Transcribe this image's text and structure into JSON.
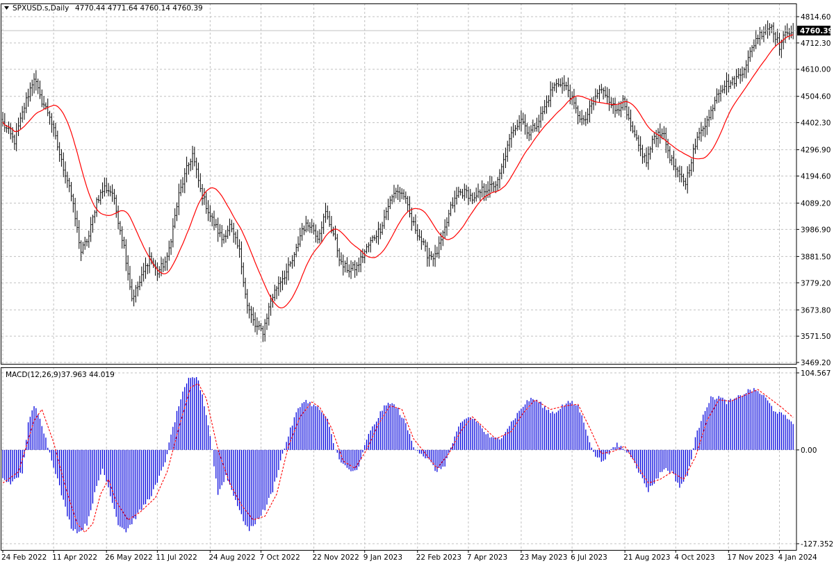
{
  "window": {
    "symbol_label": "SPXUSD.s,Daily",
    "ohlc_label": "4770.44 4771.64 4760.14 4760.39",
    "price_marker": "4760.39"
  },
  "colors": {
    "background": "#ffffff",
    "grid": "#c0c0c0",
    "candle": "#000000",
    "ma_line": "#ff0000",
    "histogram": "#0000dd",
    "signal_line": "#ff0000",
    "price_marker_bg": "#000000",
    "price_marker_text": "#ffffff"
  },
  "chart_data": [
    {
      "type": "bar",
      "title": "SPXUSD.s,Daily",
      "subtitle": "4770.44 4771.64 4760.14 4760.39",
      "y_tick_labels": [
        "4814.60",
        "4712.30",
        "4610.00",
        "4504.60",
        "4402.30",
        "4296.90",
        "4194.60",
        "4089.20",
        "3986.90",
        "3881.50",
        "3779.20",
        "3673.80",
        "3571.50",
        "3469.20"
      ],
      "ylim": [
        3455,
        4830
      ],
      "x_tick_labels": [
        "24 Feb 2022",
        "11 Apr 2022",
        "26 May 2022",
        "11 Jul 2022",
        "24 Aug 2022",
        "7 Oct 2022",
        "22 Nov 2022",
        "9 Jan 2023",
        "22 Feb 2023",
        "7 Apr 2023",
        "23 May 2023",
        "6 Jul 2023",
        "21 Aug 2023",
        "4 Oct 2023",
        "17 Nov 2023",
        "4 Jan 2024"
      ],
      "grid": true,
      "last_price": 4760.39,
      "price_keypoints": [
        [
          0,
          4400
        ],
        [
          6,
          4330
        ],
        [
          12,
          4490
        ],
        [
          16,
          4580
        ],
        [
          19,
          4500
        ],
        [
          24,
          4430
        ],
        [
          30,
          4250
        ],
        [
          34,
          4160
        ],
        [
          40,
          3900
        ],
        [
          44,
          3960
        ],
        [
          48,
          4100
        ],
        [
          52,
          4150
        ],
        [
          56,
          4130
        ],
        [
          62,
          3920
        ],
        [
          66,
          3720
        ],
        [
          70,
          3780
        ],
        [
          75,
          3880
        ],
        [
          79,
          3820
        ],
        [
          84,
          3870
        ],
        [
          90,
          4120
        ],
        [
          94,
          4220
        ],
        [
          97,
          4280
        ],
        [
          101,
          4140
        ],
        [
          106,
          4040
        ],
        [
          112,
          3950
        ],
        [
          116,
          4000
        ],
        [
          121,
          3900
        ],
        [
          125,
          3690
        ],
        [
          129,
          3610
        ],
        [
          133,
          3590
        ],
        [
          137,
          3710
        ],
        [
          141,
          3780
        ],
        [
          145,
          3820
        ],
        [
          149,
          3880
        ],
        [
          153,
          3990
        ],
        [
          157,
          4010
        ],
        [
          161,
          3960
        ],
        [
          165,
          4050
        ],
        [
          169,
          3970
        ],
        [
          173,
          3850
        ],
        [
          177,
          3830
        ],
        [
          181,
          3840
        ],
        [
          185,
          3900
        ],
        [
          189,
          3950
        ],
        [
          193,
          3990
        ],
        [
          197,
          4080
        ],
        [
          201,
          4140
        ],
        [
          205,
          4120
        ],
        [
          209,
          4020
        ],
        [
          213,
          3960
        ],
        [
          217,
          3890
        ],
        [
          221,
          3880
        ],
        [
          225,
          3960
        ],
        [
          229,
          4070
        ],
        [
          233,
          4130
        ],
        [
          237,
          4130
        ],
        [
          241,
          4100
        ],
        [
          245,
          4140
        ],
        [
          249,
          4150
        ],
        [
          253,
          4170
        ],
        [
          257,
          4280
        ],
        [
          261,
          4380
        ],
        [
          265,
          4420
        ],
        [
          269,
          4360
        ],
        [
          273,
          4400
        ],
        [
          277,
          4460
        ],
        [
          281,
          4540
        ],
        [
          285,
          4560
        ],
        [
          289,
          4530
        ],
        [
          293,
          4450
        ],
        [
          297,
          4400
        ],
        [
          301,
          4470
        ],
        [
          305,
          4530
        ],
        [
          309,
          4510
        ],
        [
          313,
          4450
        ],
        [
          317,
          4480
        ],
        [
          321,
          4380
        ],
        [
          325,
          4310
        ],
        [
          329,
          4250
        ],
        [
          333,
          4350
        ],
        [
          337,
          4370
        ],
        [
          341,
          4270
        ],
        [
          345,
          4200
        ],
        [
          349,
          4170
        ],
        [
          353,
          4290
        ],
        [
          357,
          4380
        ],
        [
          361,
          4420
        ],
        [
          365,
          4520
        ],
        [
          369,
          4550
        ],
        [
          373,
          4560
        ],
        [
          377,
          4590
        ],
        [
          381,
          4650
        ],
        [
          385,
          4730
        ],
        [
          389,
          4760
        ],
        [
          393,
          4780
        ],
        [
          397,
          4700
        ],
        [
          401,
          4760
        ],
        [
          404,
          4760.39
        ]
      ],
      "moving_average": {
        "color": "#ff0000"
      }
    },
    {
      "type": "bar",
      "title": "MACD(12,26,9)",
      "subtitle": "37.963 44.019",
      "y_tick_labels": [
        "104.567",
        "0.00",
        "-127.352"
      ],
      "ylim": [
        -127.352,
        104.567
      ],
      "histogram_values_keypoints": [
        [
          0,
          -40
        ],
        [
          5,
          -45
        ],
        [
          10,
          -30
        ],
        [
          13,
          35
        ],
        [
          16,
          60
        ],
        [
          19,
          45
        ],
        [
          23,
          5
        ],
        [
          27,
          -30
        ],
        [
          31,
          -70
        ],
        [
          35,
          -105
        ],
        [
          39,
          -112
        ],
        [
          43,
          -100
        ],
        [
          47,
          -60
        ],
        [
          51,
          -25
        ],
        [
          55,
          -60
        ],
        [
          59,
          -100
        ],
        [
          63,
          -110
        ],
        [
          67,
          -95
        ],
        [
          71,
          -80
        ],
        [
          75,
          -65
        ],
        [
          79,
          -45
        ],
        [
          83,
          -15
        ],
        [
          87,
          30
        ],
        [
          91,
          70
        ],
        [
          95,
          95
        ],
        [
          99,
          100
        ],
        [
          102,
          75
        ],
        [
          106,
          20
        ],
        [
          110,
          -60
        ],
        [
          114,
          -35
        ],
        [
          118,
          -60
        ],
        [
          122,
          -90
        ],
        [
          126,
          -110
        ],
        [
          130,
          -95
        ],
        [
          134,
          -80
        ],
        [
          138,
          -55
        ],
        [
          142,
          -15
        ],
        [
          146,
          20
        ],
        [
          150,
          50
        ],
        [
          154,
          68
        ],
        [
          158,
          62
        ],
        [
          162,
          55
        ],
        [
          166,
          40
        ],
        [
          170,
          0
        ],
        [
          174,
          -20
        ],
        [
          178,
          -30
        ],
        [
          182,
          -25
        ],
        [
          186,
          15
        ],
        [
          190,
          35
        ],
        [
          194,
          55
        ],
        [
          198,
          65
        ],
        [
          202,
          55
        ],
        [
          206,
          35
        ],
        [
          210,
          5
        ],
        [
          214,
          -5
        ],
        [
          218,
          -15
        ],
        [
          222,
          -30
        ],
        [
          226,
          -20
        ],
        [
          230,
          10
        ],
        [
          234,
          35
        ],
        [
          238,
          45
        ],
        [
          242,
          40
        ],
        [
          246,
          25
        ],
        [
          250,
          15
        ],
        [
          254,
          15
        ],
        [
          258,
          30
        ],
        [
          262,
          45
        ],
        [
          266,
          60
        ],
        [
          270,
          70
        ],
        [
          274,
          65
        ],
        [
          278,
          55
        ],
        [
          282,
          50
        ],
        [
          286,
          60
        ],
        [
          290,
          65
        ],
        [
          294,
          60
        ],
        [
          298,
          30
        ],
        [
          302,
          -5
        ],
        [
          306,
          -15
        ],
        [
          310,
          -5
        ],
        [
          314,
          8
        ],
        [
          318,
          0
        ],
        [
          322,
          -10
        ],
        [
          326,
          -35
        ],
        [
          330,
          -55
        ],
        [
          334,
          -40
        ],
        [
          338,
          -25
        ],
        [
          342,
          -30
        ],
        [
          346,
          -50
        ],
        [
          350,
          -35
        ],
        [
          354,
          15
        ],
        [
          358,
          50
        ],
        [
          362,
          70
        ],
        [
          366,
          72
        ],
        [
          370,
          65
        ],
        [
          374,
          68
        ],
        [
          378,
          75
        ],
        [
          382,
          82
        ],
        [
          386,
          80
        ],
        [
          390,
          70
        ],
        [
          394,
          55
        ],
        [
          398,
          48
        ],
        [
          404,
          38
        ]
      ],
      "signal_values_keypoints": [
        [
          0,
          -45
        ],
        [
          8,
          -30
        ],
        [
          16,
          40
        ],
        [
          20,
          55
        ],
        [
          26,
          10
        ],
        [
          32,
          -50
        ],
        [
          38,
          -100
        ],
        [
          42,
          -112
        ],
        [
          46,
          -100
        ],
        [
          50,
          -60
        ],
        [
          54,
          -40
        ],
        [
          58,
          -70
        ],
        [
          64,
          -95
        ],
        [
          70,
          -85
        ],
        [
          78,
          -65
        ],
        [
          84,
          -30
        ],
        [
          90,
          30
        ],
        [
          96,
          85
        ],
        [
          100,
          90
        ],
        [
          104,
          70
        ],
        [
          110,
          0
        ],
        [
          116,
          -45
        ],
        [
          122,
          -75
        ],
        [
          128,
          -95
        ],
        [
          134,
          -90
        ],
        [
          140,
          -60
        ],
        [
          146,
          5
        ],
        [
          152,
          45
        ],
        [
          158,
          65
        ],
        [
          162,
          58
        ],
        [
          168,
          30
        ],
        [
          174,
          -15
        ],
        [
          180,
          -25
        ],
        [
          186,
          0
        ],
        [
          192,
          35
        ],
        [
          198,
          60
        ],
        [
          204,
          55
        ],
        [
          210,
          15
        ],
        [
          216,
          -5
        ],
        [
          222,
          -25
        ],
        [
          228,
          -5
        ],
        [
          234,
          25
        ],
        [
          240,
          45
        ],
        [
          246,
          30
        ],
        [
          252,
          15
        ],
        [
          260,
          25
        ],
        [
          266,
          50
        ],
        [
          272,
          68
        ],
        [
          280,
          55
        ],
        [
          288,
          60
        ],
        [
          294,
          62
        ],
        [
          300,
          30
        ],
        [
          306,
          -5
        ],
        [
          312,
          -2
        ],
        [
          318,
          5
        ],
        [
          324,
          -20
        ],
        [
          330,
          -45
        ],
        [
          336,
          -40
        ],
        [
          342,
          -30
        ],
        [
          348,
          -40
        ],
        [
          354,
          -10
        ],
        [
          360,
          40
        ],
        [
          366,
          68
        ],
        [
          372,
          66
        ],
        [
          380,
          75
        ],
        [
          386,
          82
        ],
        [
          392,
          70
        ],
        [
          398,
          58
        ],
        [
          404,
          44
        ]
      ],
      "histogram_color": "#0000dd",
      "signal_color": "#ff0000"
    }
  ]
}
